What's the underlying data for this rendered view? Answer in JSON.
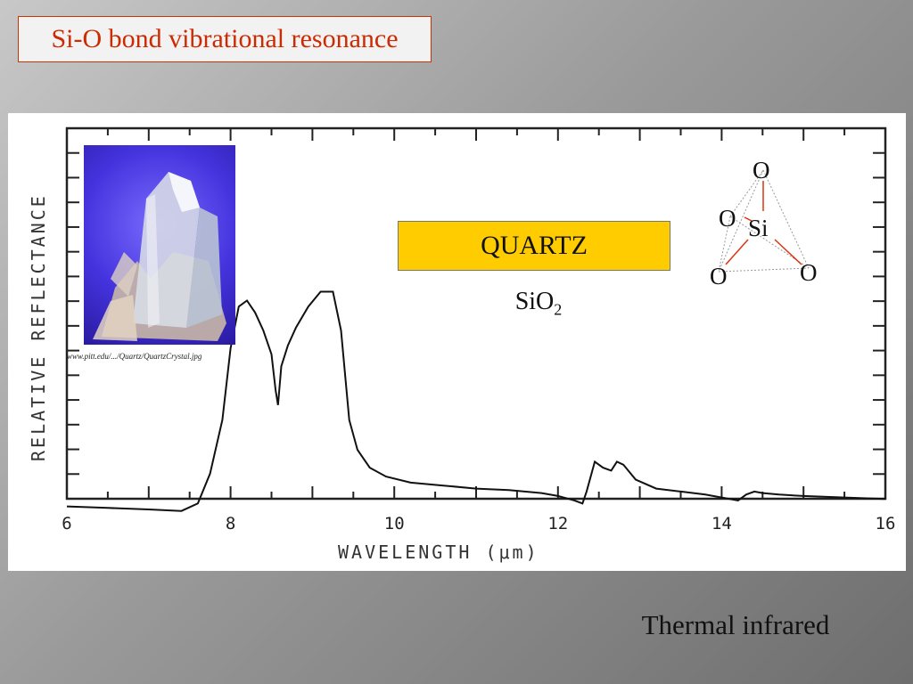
{
  "slide": {
    "title": "Si-O bond vibrational resonance",
    "caption": "Thermal infrared"
  },
  "figure": {
    "photo_credit": "www.pitt.edu/.../Quartz/QuartzCrystal.jpg",
    "mineral_label": "QUARTZ",
    "formula_main": "SiO",
    "formula_sub": "2",
    "molecule": {
      "top": "O",
      "left": "O",
      "center": "Si",
      "bottom_left": "O",
      "right": "O"
    }
  },
  "colors": {
    "title_text": "#cc2a00",
    "title_border": "#cc3300",
    "label_box": "#ffcc00",
    "bond_color": "#dd3311",
    "curve": "#111111"
  },
  "chart_data": {
    "type": "line",
    "title": "",
    "xlabel": "WAVELENGTH (μm)",
    "ylabel": "RELATIVE REFLECTANCE",
    "xlim": [
      6,
      16
    ],
    "ylim": [
      0,
      1
    ],
    "x_ticks": [
      "6",
      "8",
      "10",
      "12",
      "14",
      "16"
    ],
    "grid": false,
    "series": [
      {
        "x": [
          6.0,
          6.5,
          7.0,
          7.4,
          7.6,
          7.75,
          7.9,
          8.0,
          8.1,
          8.2,
          8.3,
          8.4,
          8.5,
          8.55,
          8.58,
          8.62,
          8.7,
          8.8,
          8.95,
          9.1,
          9.25,
          9.35,
          9.45,
          9.55,
          9.7,
          9.9,
          10.2,
          10.6,
          11.0,
          11.4,
          11.8,
          12.0,
          12.2,
          12.3,
          12.35,
          12.45,
          12.55,
          12.65,
          12.72,
          12.8,
          12.95,
          13.2,
          13.5,
          13.8,
          14.0,
          14.2,
          14.3,
          14.4,
          14.5,
          14.7,
          15.0,
          15.5,
          16.0
        ],
        "y": [
          0.01,
          0.005,
          0.0,
          -0.005,
          0.02,
          0.12,
          0.3,
          0.54,
          0.68,
          0.7,
          0.66,
          0.6,
          0.52,
          0.4,
          0.35,
          0.48,
          0.55,
          0.61,
          0.68,
          0.73,
          0.73,
          0.6,
          0.3,
          0.2,
          0.14,
          0.11,
          0.09,
          0.08,
          0.07,
          0.065,
          0.055,
          0.045,
          0.03,
          0.02,
          0.06,
          0.16,
          0.14,
          0.13,
          0.16,
          0.15,
          0.1,
          0.07,
          0.06,
          0.05,
          0.04,
          0.03,
          0.05,
          0.06,
          0.055,
          0.05,
          0.045,
          0.04,
          0.035
        ]
      }
    ]
  }
}
